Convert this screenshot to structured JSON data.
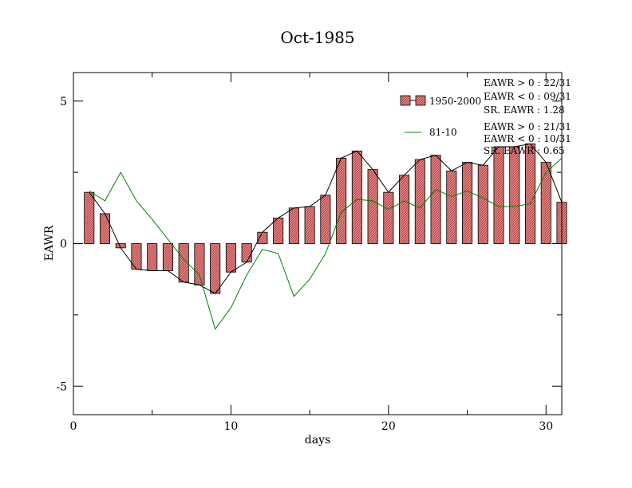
{
  "chart_data": {
    "type": "bar",
    "title": "Oct-1985",
    "xlabel": "days",
    "ylabel": "EAWR",
    "xlim": [
      0,
      31
    ],
    "ylim": [
      -6,
      6
    ],
    "xticks": [
      0,
      10,
      20,
      30
    ],
    "xtick_labels": [
      "0",
      "10",
      "20",
      "30"
    ],
    "yticks": [
      -5,
      0,
      5
    ],
    "ytick_labels": [
      "-5",
      "0",
      "5"
    ],
    "grid": false,
    "legend_placement": "top-right",
    "colors": {
      "bar_fill": "#e88080",
      "bar_line": "#000000",
      "line_81_10": "#008000"
    },
    "series": [
      {
        "name": "1950-2000",
        "kind": "bar-with-line",
        "x": [
          1,
          2,
          3,
          4,
          5,
          6,
          7,
          8,
          9,
          10,
          11,
          12,
          13,
          14,
          15,
          16,
          17,
          18,
          19,
          20,
          21,
          22,
          23,
          24,
          25,
          26,
          27,
          28,
          29,
          30,
          31
        ],
        "values": [
          1.8,
          1.05,
          -0.15,
          -0.9,
          -0.95,
          -0.95,
          -1.35,
          -1.45,
          -1.75,
          -1.0,
          -0.65,
          0.4,
          0.9,
          1.25,
          1.3,
          1.7,
          3.0,
          3.25,
          2.6,
          1.8,
          2.4,
          2.95,
          3.1,
          2.55,
          2.85,
          2.75,
          3.4,
          3.4,
          3.5,
          2.85,
          1.45
        ]
      },
      {
        "name": "81-10",
        "kind": "line",
        "x": [
          1,
          2,
          3,
          4,
          5,
          6,
          7,
          8,
          9,
          10,
          11,
          12,
          13,
          14,
          15,
          16,
          17,
          18,
          19,
          20,
          21,
          22,
          23,
          24,
          25,
          26,
          27,
          28,
          29,
          30,
          31
        ],
        "values": [
          1.85,
          1.5,
          2.5,
          1.5,
          0.85,
          0.15,
          -0.55,
          -1.1,
          -3.0,
          -2.25,
          -1.1,
          -0.2,
          -0.35,
          -1.85,
          -1.25,
          -0.35,
          1.1,
          1.55,
          1.5,
          1.2,
          1.5,
          1.25,
          1.9,
          1.65,
          1.85,
          1.6,
          1.3,
          1.3,
          1.4,
          2.5,
          3.0
        ]
      }
    ],
    "stats_1950_2000": [
      "EAWR > 0 : 22/31",
      "EAWR < 0 : 09/31",
      "SR. EAWR : 1.28"
    ],
    "stats_81_10": [
      "EAWR > 0 : 21/31",
      "EAWR < 0 : 10/31",
      "SR. EAWR : 0.65"
    ]
  }
}
